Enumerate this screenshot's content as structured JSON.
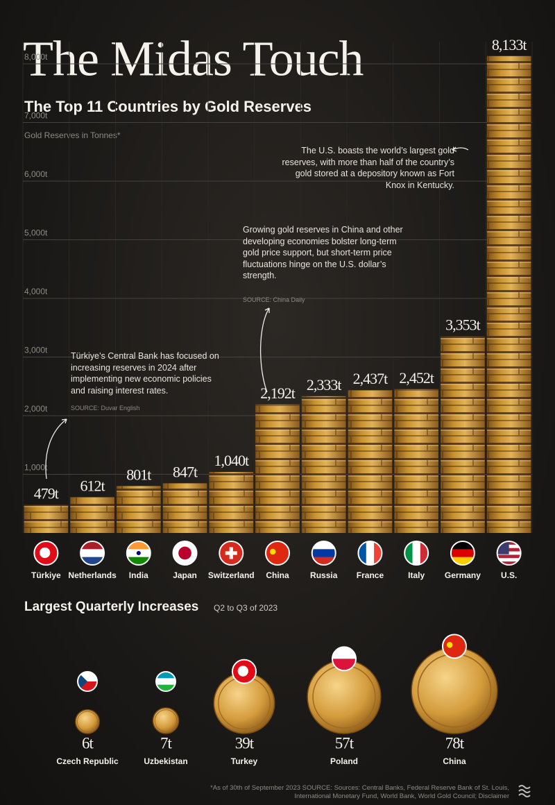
{
  "chart_data": [
    {
      "type": "bar",
      "title": "The Midas Touch",
      "subtitle": "The Top 11 Countries by Gold Reserves",
      "y_label": "Gold Reserves in Tonnes*",
      "categories": [
        "Türkiye",
        "Netherlands",
        "India",
        "Japan",
        "Switzerland",
        "China",
        "Russia",
        "France",
        "Italy",
        "Germany",
        "U.S."
      ],
      "values": [
        479,
        612,
        801,
        847,
        1040,
        2192,
        2333,
        2437,
        2452,
        3353,
        8133
      ],
      "value_labels": [
        "479t",
        "612t",
        "801t",
        "847t",
        "1,040t",
        "2,192t",
        "2,333t",
        "2,437t",
        "2,452t",
        "3,353t",
        "8,133t"
      ],
      "color": "#c8922e",
      "ylim": [
        0,
        8000
      ],
      "yticks": [
        {
          "value": 1000,
          "label": "1,000t"
        },
        {
          "value": 2000,
          "label": "2,000t"
        },
        {
          "value": 3000,
          "label": "3,000t"
        },
        {
          "value": 4000,
          "label": "4,000t"
        },
        {
          "value": 5000,
          "label": "5,000t"
        },
        {
          "value": 6000,
          "label": "6,000t"
        },
        {
          "value": 7000,
          "label": "7,000t"
        },
        {
          "value": 8000,
          "label": "8,000t"
        }
      ],
      "grid": true,
      "annotations": [
        {
          "text": "The U.S. boasts the world’s largest gold reserves, with more than half of the country’s gold stored at a depository known as Fort Knox in Kentucky."
        },
        {
          "text": "Growing gold reserves in China and other developing economies bolster long-term gold price support, but short-term price fluctuations hinge on the U.S. dollar’s strength.",
          "source": "SOURCE: China Daily"
        },
        {
          "text": "Türkiye’s Central Bank has focused on increasing reserves in 2024 after implementing new economic policies and raising interest rates.",
          "source": "SOURCE: Duvar English"
        }
      ],
      "footnote": "*As of 30th of September 2023 SOURCE: Sources: Central Banks, Federal Reserve Bank of St. Louis, International Monetary Fund, World Bank, World Gold Council; Disclaimer"
    },
    {
      "type": "bubble",
      "title": "Largest Quarterly Increases",
      "subtitle": "Q2 to Q3 of 2023",
      "categories": [
        "Czech Republic",
        "Uzbekistan",
        "Turkey",
        "Poland",
        "China"
      ],
      "values": [
        6,
        7,
        39,
        57,
        78
      ],
      "value_labels": [
        "6t",
        "7t",
        "39t",
        "57t",
        "78t"
      ],
      "color": "#d9a441"
    }
  ]
}
